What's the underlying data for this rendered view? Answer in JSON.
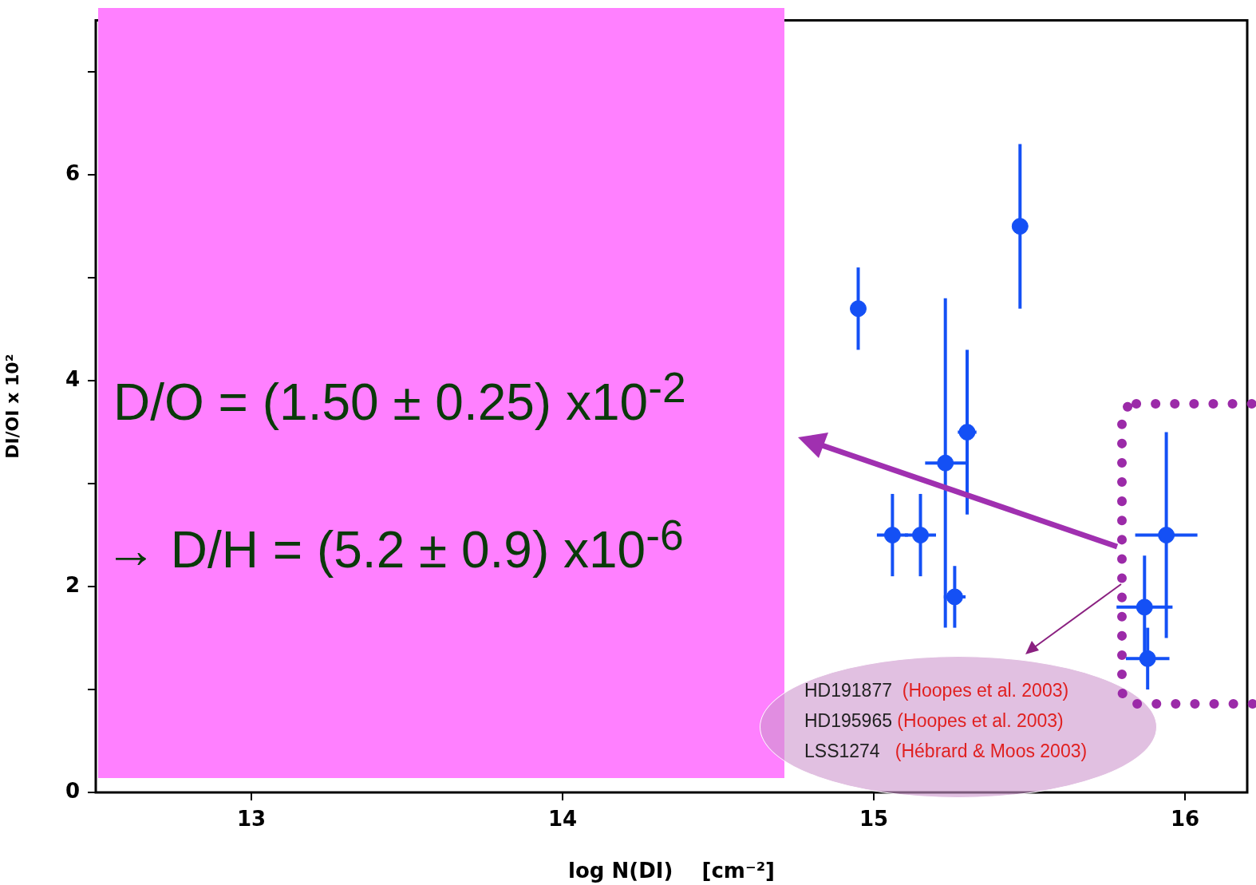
{
  "chart_data": {
    "type": "scatter",
    "xlabel": "log N(DI)    [cm⁻²]",
    "ylabel": "DI/OI x 10²",
    "x": [
      14.95,
      15.47,
      15.06,
      15.15,
      15.23,
      15.3,
      15.26,
      15.87,
      15.88,
      15.94
    ],
    "values": [
      4.7,
      5.5,
      2.5,
      2.5,
      3.2,
      3.5,
      1.9,
      1.8,
      1.3,
      2.5
    ],
    "errors": [
      0.4,
      0.8,
      0.4,
      0.4,
      1.6,
      0.8,
      0.3,
      0.5,
      0.3,
      1.0
    ],
    "xerrors": [
      null,
      null,
      0.05,
      0.05,
      0.065,
      0.03,
      0.035,
      0.09,
      0.07,
      0.1
    ],
    "color": "#1450f5",
    "marker": "circle",
    "xlim": [
      12.5,
      16.2
    ],
    "ylim": [
      0,
      7.5
    ],
    "xticks": [
      13,
      14,
      15,
      16
    ],
    "yticks": [
      0,
      {
        "value": 1,
        "label": null
      },
      2,
      {
        "value": 3,
        "label": null
      },
      4,
      {
        "value": 5,
        "label": null
      },
      6,
      {
        "value": 7,
        "label": null
      }
    ],
    "grid": false,
    "legend": false,
    "annotations": [
      "D/O = (1.50 ± 0.25) x10$^{-2}$",
      "→ D/H = (5.2 ± 0.9) x10$^{-6}$",
      "HD191877  (Hoopes et al. 2003)",
      "HD195965 (Hoopes et al. 2003)",
      "LSS1274   (Hébrard & Moos 2003)"
    ]
  }
}
